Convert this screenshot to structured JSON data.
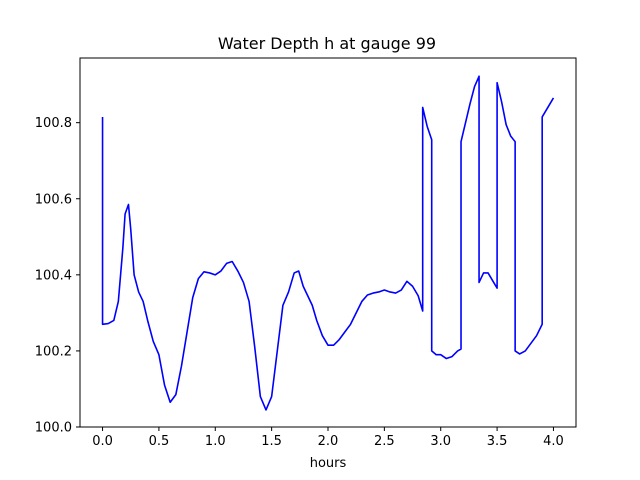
{
  "chart_data": {
    "type": "line",
    "title": "Water Depth h at gauge 99",
    "xlabel": "hours",
    "ylabel": "",
    "xlim": [
      -0.2,
      4.2
    ],
    "ylim": [
      100.0,
      100.97
    ],
    "xticks": [
      0.0,
      0.5,
      1.0,
      1.5,
      2.0,
      2.5,
      3.0,
      3.5,
      4.0
    ],
    "xtick_labels": [
      "0.0",
      "0.5",
      "1.0",
      "1.5",
      "2.0",
      "2.5",
      "3.0",
      "3.5",
      "4.0"
    ],
    "yticks": [
      100.0,
      100.2,
      100.4,
      100.6,
      100.8
    ],
    "ytick_labels": [
      "100.0",
      "100.2",
      "100.4",
      "100.6",
      "100.8"
    ],
    "grid": false,
    "series": [
      {
        "color": "#0000ff",
        "x": [
          0.0,
          0.0,
          0.05,
          0.1,
          0.14,
          0.18,
          0.2,
          0.23,
          0.25,
          0.28,
          0.32,
          0.36,
          0.4,
          0.45,
          0.5,
          0.55,
          0.6,
          0.65,
          0.7,
          0.75,
          0.8,
          0.85,
          0.9,
          0.95,
          1.0,
          1.05,
          1.1,
          1.15,
          1.2,
          1.25,
          1.3,
          1.35,
          1.4,
          1.45,
          1.5,
          1.55,
          1.6,
          1.65,
          1.7,
          1.74,
          1.78,
          1.82,
          1.86,
          1.9,
          1.95,
          2.0,
          2.05,
          2.1,
          2.15,
          2.2,
          2.25,
          2.3,
          2.35,
          2.4,
          2.45,
          2.5,
          2.55,
          2.6,
          2.65,
          2.7,
          2.75,
          2.8,
          2.84,
          2.84,
          2.88,
          2.92,
          2.92,
          2.96,
          3.0,
          3.05,
          3.1,
          3.15,
          3.18,
          3.18,
          3.22,
          3.26,
          3.3,
          3.34,
          3.34,
          3.38,
          3.42,
          3.46,
          3.5,
          3.5,
          3.54,
          3.58,
          3.62,
          3.66,
          3.66,
          3.7,
          3.75,
          3.8,
          3.85,
          3.9,
          3.9,
          3.95,
          4.0
        ],
        "y": [
          100.815,
          100.27,
          100.272,
          100.28,
          100.33,
          100.47,
          100.56,
          100.585,
          100.52,
          100.4,
          100.355,
          100.33,
          100.28,
          100.225,
          100.19,
          100.11,
          100.065,
          100.085,
          100.16,
          100.25,
          100.34,
          100.39,
          100.408,
          100.405,
          100.4,
          100.41,
          100.43,
          100.435,
          100.41,
          100.38,
          100.33,
          100.21,
          100.08,
          100.045,
          100.08,
          100.2,
          100.32,
          100.355,
          100.405,
          100.41,
          100.37,
          100.345,
          100.32,
          100.28,
          100.24,
          100.215,
          100.215,
          100.23,
          100.25,
          100.27,
          100.3,
          100.33,
          100.347,
          100.352,
          100.355,
          100.36,
          100.355,
          100.352,
          100.36,
          100.383,
          100.37,
          100.345,
          100.305,
          100.84,
          100.79,
          100.755,
          100.2,
          100.19,
          100.19,
          100.18,
          100.185,
          100.2,
          100.205,
          100.75,
          100.8,
          100.85,
          100.895,
          100.922,
          100.38,
          100.405,
          100.405,
          100.385,
          100.365,
          100.905,
          100.855,
          100.795,
          100.765,
          100.75,
          100.2,
          100.192,
          100.2,
          100.22,
          100.24,
          100.27,
          100.815,
          100.84,
          100.865
        ]
      }
    ]
  }
}
